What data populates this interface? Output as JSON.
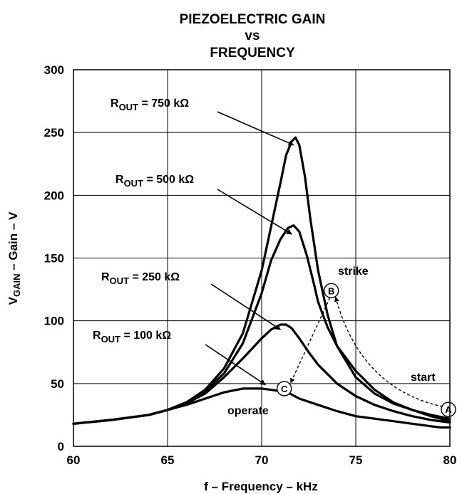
{
  "chart_data": {
    "type": "line",
    "title": [
      "PIEZOELECTRIC GAIN",
      "vs",
      "FREQUENCY"
    ],
    "xlabel": "f – Frequency – kHz",
    "ylabel": {
      "main": "V",
      "sub": "GAIN",
      "rest": " – Gain – V"
    },
    "xlim": [
      60,
      80
    ],
    "ylim": [
      0,
      300
    ],
    "xticks": [
      60,
      65,
      70,
      75,
      80
    ],
    "yticks": [
      0,
      50,
      100,
      150,
      200,
      250,
      300
    ],
    "grid": true,
    "series": [
      {
        "label": {
          "main": "R",
          "sub": "OUT",
          "rest": " = 750 kΩ"
        },
        "x": [
          60,
          62,
          64,
          65,
          66,
          67,
          68,
          69,
          70,
          70.5,
          71,
          71.3,
          71.6,
          71.8,
          72,
          72.3,
          72.6,
          73,
          73.5,
          74,
          75,
          76,
          77,
          78,
          79,
          80
        ],
        "values": [
          18,
          21,
          25,
          29,
          35,
          45,
          62,
          90,
          140,
          175,
          210,
          232,
          243,
          246,
          240,
          215,
          180,
          140,
          105,
          80,
          55,
          42,
          34,
          29,
          25,
          22
        ]
      },
      {
        "label": {
          "main": "R",
          "sub": "OUT",
          "rest": " = 500 kΩ"
        },
        "x": [
          60,
          62,
          64,
          65,
          66,
          67,
          68,
          69,
          70,
          70.5,
          71,
          71.4,
          71.7,
          72,
          72.4,
          72.8,
          73,
          73.5,
          74,
          75,
          76,
          77,
          78,
          79,
          80
        ],
        "values": [
          18,
          21,
          25,
          29,
          35,
          44,
          58,
          82,
          122,
          148,
          165,
          174,
          176,
          171,
          152,
          128,
          115,
          95,
          80,
          60,
          45,
          35,
          29,
          24,
          20
        ]
      },
      {
        "label": {
          "main": "R",
          "sub": "OUT",
          "rest": " = 250 kΩ"
        },
        "x": [
          60,
          62,
          64,
          65,
          66,
          67,
          68,
          69,
          70,
          70.5,
          71,
          71.3,
          71.6,
          72,
          72.5,
          73,
          74,
          75,
          76,
          77,
          78,
          79,
          80
        ],
        "values": [
          18,
          21,
          25,
          29,
          34,
          42,
          55,
          70,
          86,
          93,
          97,
          97,
          94,
          86,
          75,
          65,
          50,
          40,
          33,
          28,
          24,
          21,
          19
        ]
      },
      {
        "label": {
          "main": "R",
          "sub": "OUT",
          "rest": " = 100 kΩ"
        },
        "x": [
          60,
          62,
          64,
          65,
          66,
          67,
          68,
          69,
          70,
          70.5,
          71,
          71.5,
          72,
          73,
          74,
          75,
          76,
          77,
          78,
          79,
          79.5,
          80
        ],
        "values": [
          18,
          21,
          25,
          29,
          33,
          38,
          43,
          46,
          46,
          45,
          44,
          42,
          38,
          33,
          28,
          24,
          22,
          20,
          18,
          16,
          15,
          15
        ]
      }
    ],
    "annotations": {
      "strike": "strike",
      "start": "start",
      "operate": "operate",
      "points": [
        {
          "id": "A",
          "x": 80,
          "y": 22
        },
        {
          "id": "B",
          "x": 73.7,
          "y": 124
        },
        {
          "id": "C",
          "x": 71.2,
          "y": 46
        }
      ]
    }
  }
}
